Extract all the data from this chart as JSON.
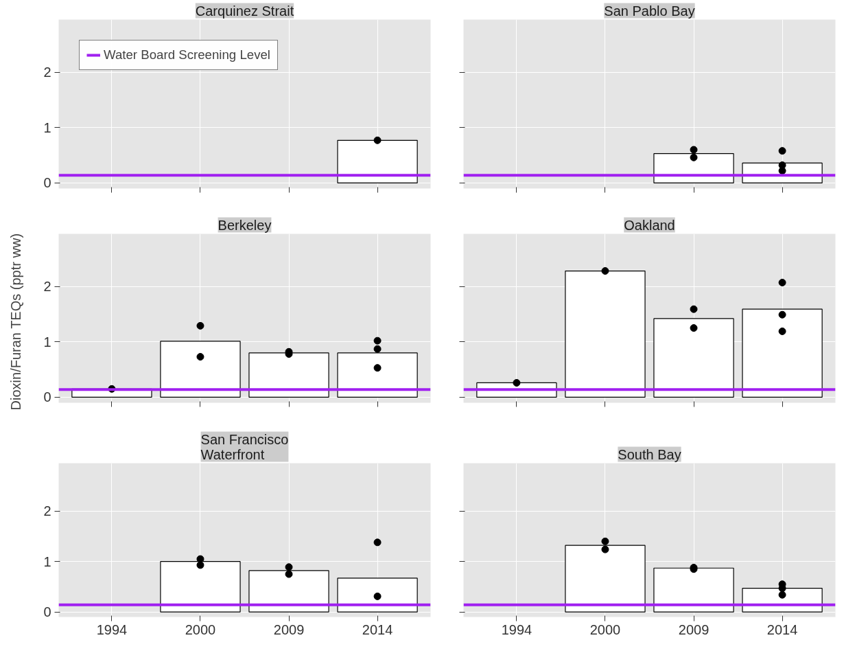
{
  "chart_data": [
    {
      "type": "bar",
      "title": "Carquinez Strait",
      "ylabel": "Dioxin/Furan TEQs (pptr ww)",
      "categories": [
        "1994",
        "2000",
        "2009",
        "2014"
      ],
      "ylim": [
        -0.1,
        2.95
      ],
      "yticks": [
        0,
        1,
        2
      ],
      "grid": true,
      "tick_labels": "y",
      "legend": "top left",
      "series": [
        {
          "color": "#ffffff",
          "values": [
            null,
            null,
            null,
            0.77
          ]
        },
        {
          "type": "scatter",
          "color": "#000000",
          "values": [
            null,
            null,
            null,
            0.77
          ]
        }
      ],
      "ref_lines": [
        {
          "axis": "y",
          "value": 0.14,
          "label": "Water Board Screening Level",
          "color": "#a020f0"
        }
      ]
    },
    {
      "type": "bar",
      "title": "San Pablo Bay",
      "categories": [
        "1994",
        "2000",
        "2009",
        "2014"
      ],
      "ylim": [
        -0.1,
        2.95
      ],
      "yticks": [
        0,
        1,
        2
      ],
      "grid": true,
      "tick_labels": false,
      "series": [
        {
          "color": "#ffffff",
          "values": [
            null,
            null,
            0.53,
            0.36
          ]
        },
        {
          "type": "scatter",
          "color": "#000000",
          "values": [
            null,
            null,
            0.6,
            0.58
          ]
        },
        {
          "type": "scatter",
          "color": "#000000",
          "values": [
            null,
            null,
            0.46,
            0.32
          ]
        },
        {
          "type": "scatter",
          "color": "#000000",
          "values": [
            null,
            null,
            null,
            0.22
          ]
        }
      ],
      "ref_lines": [
        {
          "axis": "y",
          "value": 0.14,
          "color": "#a020f0"
        }
      ]
    },
    {
      "type": "bar",
      "title": "Berkeley",
      "categories": [
        "1994",
        "2000",
        "2009",
        "2014"
      ],
      "ylim": [
        -0.1,
        2.95
      ],
      "yticks": [
        0,
        1,
        2
      ],
      "grid": true,
      "tick_labels": "y",
      "series": [
        {
          "color": "#ffffff",
          "values": [
            0.15,
            1.01,
            0.8,
            0.8
          ]
        },
        {
          "type": "scatter",
          "color": "#000000",
          "values": [
            0.15,
            1.29,
            0.82,
            1.02
          ]
        },
        {
          "type": "scatter",
          "color": "#000000",
          "values": [
            null,
            0.73,
            0.78,
            0.87
          ]
        },
        {
          "type": "scatter",
          "color": "#000000",
          "values": [
            null,
            null,
            null,
            0.53
          ]
        }
      ],
      "ref_lines": [
        {
          "axis": "y",
          "value": 0.14,
          "color": "#a020f0"
        }
      ]
    },
    {
      "type": "bar",
      "title": "Oakland",
      "categories": [
        "1994",
        "2000",
        "2009",
        "2014"
      ],
      "ylim": [
        -0.1,
        2.95
      ],
      "yticks": [
        0,
        1,
        2
      ],
      "grid": true,
      "tick_labels": false,
      "series": [
        {
          "color": "#ffffff",
          "values": [
            0.26,
            2.28,
            1.42,
            1.59
          ]
        },
        {
          "type": "scatter",
          "color": "#000000",
          "values": [
            0.26,
            2.28,
            1.59,
            2.07
          ]
        },
        {
          "type": "scatter",
          "color": "#000000",
          "values": [
            null,
            null,
            1.25,
            1.49
          ]
        },
        {
          "type": "scatter",
          "color": "#000000",
          "values": [
            null,
            null,
            null,
            1.19
          ]
        }
      ],
      "ref_lines": [
        {
          "axis": "y",
          "value": 0.14,
          "color": "#a020f0"
        }
      ]
    },
    {
      "type": "bar",
      "title": "San Francisco\nWaterfront",
      "categories": [
        "1994",
        "2000",
        "2009",
        "2014"
      ],
      "ylim": [
        -0.1,
        2.95
      ],
      "yticks": [
        0,
        1,
        2
      ],
      "grid": true,
      "series": [
        {
          "color": "#ffffff",
          "values": [
            null,
            1.0,
            0.82,
            0.67
          ]
        },
        {
          "type": "scatter",
          "color": "#000000",
          "values": [
            null,
            1.05,
            0.89,
            1.38
          ]
        },
        {
          "type": "scatter",
          "color": "#000000",
          "values": [
            null,
            0.93,
            0.75,
            0.31
          ]
        }
      ],
      "ref_lines": [
        {
          "axis": "y",
          "value": 0.14,
          "color": "#a020f0"
        }
      ]
    },
    {
      "type": "bar",
      "title": "South Bay",
      "categories": [
        "1994",
        "2000",
        "2009",
        "2014"
      ],
      "ylim": [
        -0.1,
        2.95
      ],
      "yticks": [
        0,
        1,
        2
      ],
      "grid": true,
      "tick_labels": "x",
      "series": [
        {
          "color": "#ffffff",
          "values": [
            null,
            1.32,
            0.87,
            0.47
          ]
        },
        {
          "type": "scatter",
          "color": "#000000",
          "values": [
            null,
            1.4,
            0.88,
            0.55
          ]
        },
        {
          "type": "scatter",
          "color": "#000000",
          "values": [
            null,
            1.24,
            0.85,
            0.47
          ]
        },
        {
          "type": "scatter",
          "color": "#000000",
          "values": [
            null,
            null,
            null,
            0.34
          ]
        }
      ],
      "ref_lines": [
        {
          "axis": "y",
          "value": 0.14,
          "color": "#a020f0"
        }
      ]
    }
  ]
}
